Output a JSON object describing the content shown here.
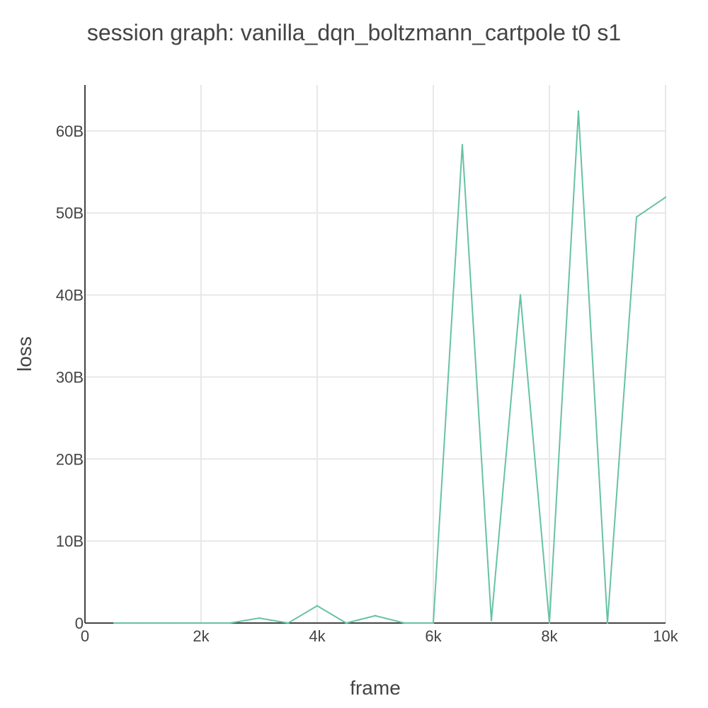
{
  "chart_data": {
    "type": "line",
    "title": "session graph: vanilla_dqn_boltzmann_cartpole t0 s1",
    "xlabel": "frame",
    "ylabel": "loss",
    "xlim": [
      0,
      10000
    ],
    "ylim": [
      0,
      65600000000
    ],
    "x_ticks": [
      0,
      2000,
      4000,
      6000,
      8000,
      10000
    ],
    "x_tick_labels": [
      "0",
      "2k",
      "4k",
      "6k",
      "8k",
      "10k"
    ],
    "y_ticks": [
      0,
      10000000000,
      20000000000,
      30000000000,
      40000000000,
      50000000000,
      60000000000
    ],
    "y_tick_labels": [
      "0",
      "10B",
      "20B",
      "30B",
      "40B",
      "50B",
      "60B"
    ],
    "grid": true,
    "legend": "none",
    "line_color": "#66c2a5",
    "series": [
      {
        "x": [
          500,
          1000,
          1500,
          2000,
          2500,
          3000,
          3500,
          4000,
          4500,
          5000,
          5500,
          6000,
          6500,
          7000,
          7500,
          8000,
          8500,
          9000,
          9500,
          10000
        ],
        "values": [
          0,
          0,
          0,
          0,
          0,
          600000000,
          0,
          2100000000,
          0,
          900000000,
          0,
          0,
          58300000000,
          300000000,
          40000000000,
          0,
          62400000000,
          0,
          49500000000,
          51900000000
        ]
      }
    ]
  }
}
